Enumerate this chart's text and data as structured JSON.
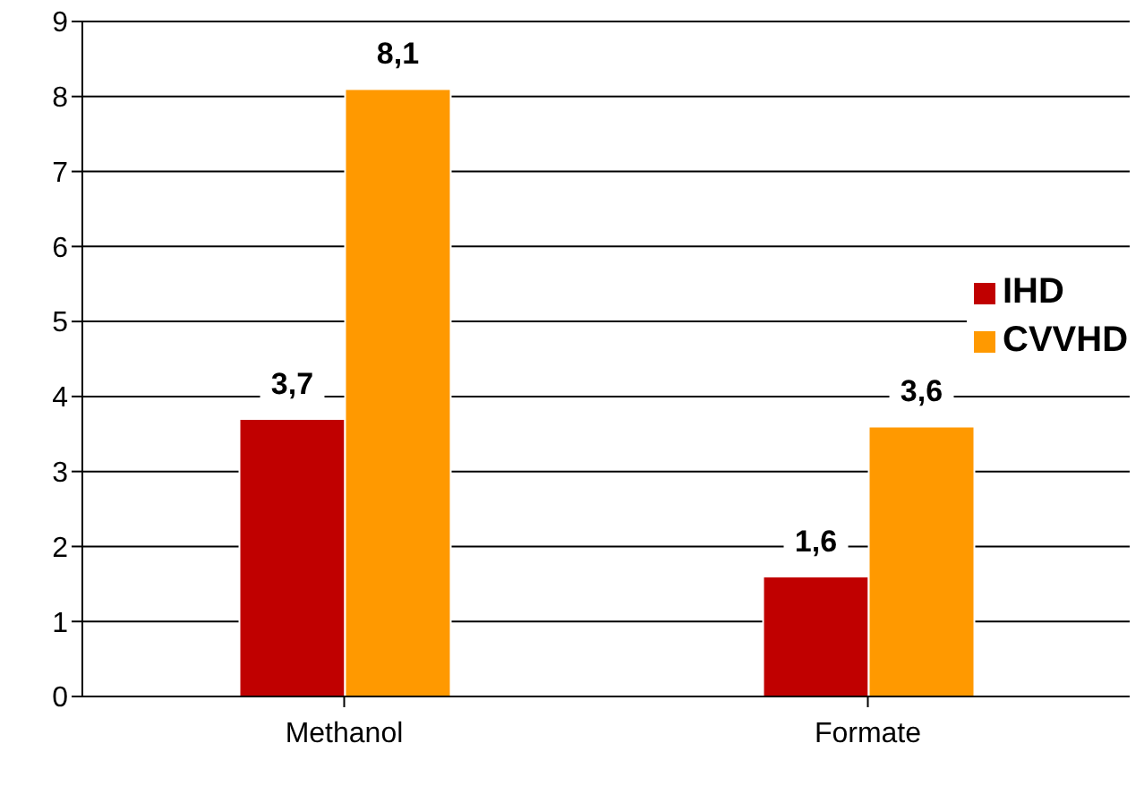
{
  "chart_data": {
    "type": "bar",
    "categories": [
      "Methanol",
      "Formate"
    ],
    "series": [
      {
        "name": "IHD",
        "color": "#c00000",
        "values": [
          3.7,
          1.6
        ],
        "value_labels": [
          "3,7",
          "1,6"
        ]
      },
      {
        "name": "CVVHD",
        "color": "#ff9900",
        "values": [
          8.1,
          3.6
        ],
        "value_labels": [
          "8,1",
          "3,6"
        ]
      }
    ],
    "ylim": [
      0,
      9
    ],
    "yticks": [
      0,
      1,
      2,
      3,
      4,
      5,
      6,
      7,
      8,
      9
    ],
    "grid": "y",
    "legend": "right"
  }
}
